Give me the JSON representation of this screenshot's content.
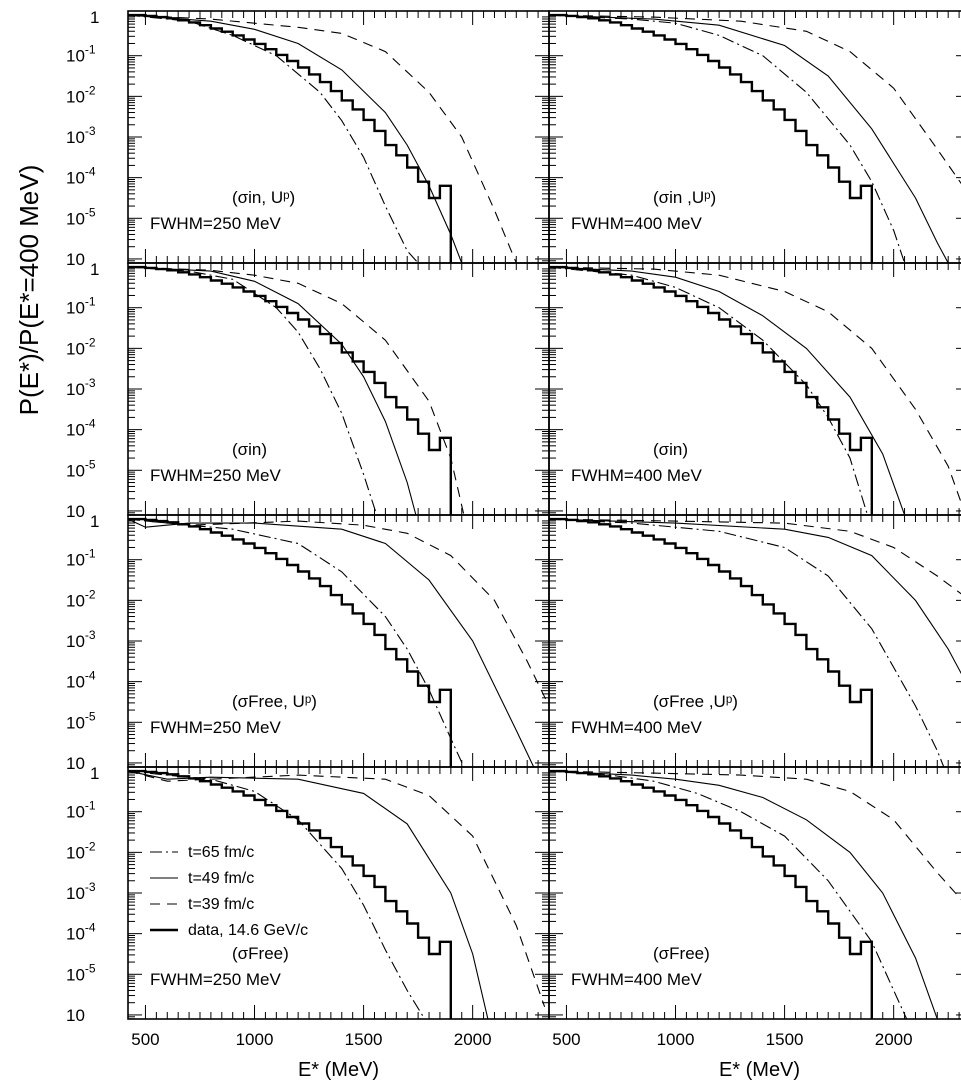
{
  "figure": {
    "ylabel": "P(E*)/P(E*=400 MeV)",
    "xlabel": "E* (MeV)",
    "x_ticks": [
      "500",
      "1000",
      "1500",
      "2000"
    ],
    "y_ticks": [
      "1",
      "10-1",
      "10-2",
      "10-3",
      "10-4",
      "10-5",
      "10"
    ]
  },
  "legend": {
    "items": [
      {
        "label": "t=65 fm/c",
        "style": "dashdot"
      },
      {
        "label": "t=49 fm/c",
        "style": "solid"
      },
      {
        "label": "t=39 fm/c",
        "style": "dashed"
      },
      {
        "label": "data, 14.6 GeV/c",
        "style": "histogram"
      }
    ]
  },
  "chart_data": {
    "type": "line",
    "layout": "4x2 grid of panels, shared axes",
    "xlabel": "E* (MeV)",
    "ylabel": "P(E*)/P(E*=400 MeV)",
    "xlim": [
      420,
      2350
    ],
    "ylim_log10": [
      -6.1,
      0.1
    ],
    "y_scale": "log",
    "x_ticks": [
      500,
      1000,
      1500,
      2000
    ],
    "legend_position": "lower-left of bottom-left panel",
    "data_histogram": {
      "name": "data, 14.6 GeV/c",
      "x": [
        420,
        500,
        550,
        600,
        650,
        700,
        750,
        800,
        850,
        900,
        950,
        1000,
        1050,
        1100,
        1150,
        1200,
        1250,
        1300,
        1350,
        1400,
        1450,
        1500,
        1550,
        1600,
        1650,
        1700,
        1750,
        1800,
        1850,
        1900
      ],
      "log10_y": [
        0,
        -0.02,
        -0.05,
        -0.08,
        -0.13,
        -0.18,
        -0.25,
        -0.33,
        -0.41,
        -0.5,
        -0.6,
        -0.71,
        -0.84,
        -0.98,
        -1.13,
        -1.29,
        -1.46,
        -1.65,
        -1.87,
        -2.1,
        -2.32,
        -2.58,
        -2.85,
        -3.2,
        -3.45,
        -3.75,
        -4.1,
        -4.5,
        -4.2
      ]
    },
    "panels": [
      {
        "label": "(σin, Uᵖ)",
        "fwhm": "FWHM=250 MeV",
        "t65": {
          "x": [
            420,
            700,
            900,
            1100,
            1300,
            1400,
            1500,
            1600,
            1700,
            1750
          ],
          "log10_y": [
            0,
            -0.15,
            -0.5,
            -1.0,
            -1.9,
            -2.6,
            -3.5,
            -4.7,
            -5.8,
            -6.1
          ]
        },
        "t49": {
          "x": [
            420,
            800,
            1000,
            1200,
            1400,
            1600,
            1700,
            1800,
            1900,
            1950
          ],
          "log10_y": [
            0,
            -0.15,
            -0.35,
            -0.7,
            -1.35,
            -2.4,
            -3.2,
            -4.2,
            -5.4,
            -6.1
          ]
        },
        "t39": {
          "x": [
            420,
            800,
            1000,
            1200,
            1400,
            1600,
            1800,
            1950,
            2100,
            2200
          ],
          "log10_y": [
            0,
            -0.1,
            -0.2,
            -0.3,
            -0.45,
            -0.9,
            -1.9,
            -3.0,
            -4.8,
            -6.1
          ]
        }
      },
      {
        "label": "(σin ,Uᵖ)",
        "fwhm": "FWHM=400 MeV",
        "t65": {
          "x": [
            420,
            800,
            1000,
            1200,
            1400,
            1600,
            1800,
            1900,
            2000,
            2050
          ],
          "log10_y": [
            0,
            -0.1,
            -0.2,
            -0.5,
            -1.0,
            -1.9,
            -3.2,
            -4.1,
            -5.3,
            -6.1
          ]
        },
        "t49": {
          "x": [
            420,
            900,
            1200,
            1500,
            1700,
            1900,
            2100,
            2200,
            2250
          ],
          "log10_y": [
            0,
            -0.1,
            -0.25,
            -0.75,
            -1.5,
            -2.8,
            -4.5,
            -5.6,
            -6.1
          ]
        },
        "t39": {
          "x": [
            420,
            900,
            1300,
            1600,
            1800,
            2000,
            2200,
            2330
          ],
          "log10_y": [
            0,
            -0.05,
            -0.15,
            -0.4,
            -0.9,
            -1.8,
            -3.3,
            -4.3
          ]
        }
      },
      {
        "label": "(σin)",
        "fwhm": "FWHM=250 MeV",
        "t65": {
          "x": [
            420,
            700,
            900,
            1100,
            1200,
            1300,
            1400,
            1500,
            1560
          ],
          "log10_y": [
            0,
            -0.1,
            -0.3,
            -1.0,
            -1.6,
            -2.5,
            -3.6,
            -5.1,
            -6.1
          ]
        },
        "t49": {
          "x": [
            420,
            800,
            1000,
            1200,
            1400,
            1500,
            1600,
            1700,
            1740
          ],
          "log10_y": [
            0,
            -0.1,
            -0.35,
            -0.9,
            -1.9,
            -2.7,
            -3.8,
            -5.3,
            -6.1
          ]
        },
        "t39": {
          "x": [
            420,
            800,
            1000,
            1200,
            1400,
            1600,
            1800,
            1900,
            1960
          ],
          "log10_y": [
            0,
            -0.08,
            -0.2,
            -0.4,
            -0.9,
            -1.8,
            -3.3,
            -4.7,
            -6.1
          ]
        }
      },
      {
        "label": "(σin)",
        "fwhm": "FWHM=400 MeV",
        "t65": {
          "x": [
            420,
            800,
            1000,
            1200,
            1400,
            1600,
            1700,
            1800,
            1880
          ],
          "log10_y": [
            0,
            -0.2,
            -0.5,
            -1.0,
            -1.8,
            -2.9,
            -3.7,
            -4.7,
            -6.1
          ]
        },
        "t49": {
          "x": [
            420,
            800,
            1000,
            1200,
            1400,
            1600,
            1800,
            1950,
            2050
          ],
          "log10_y": [
            0,
            -0.1,
            -0.25,
            -0.6,
            -1.2,
            -2.0,
            -3.2,
            -4.6,
            -6.1
          ]
        },
        "t39": {
          "x": [
            420,
            900,
            1200,
            1500,
            1700,
            1900,
            2100,
            2250,
            2330
          ],
          "log10_y": [
            0,
            -0.05,
            -0.2,
            -0.6,
            -1.1,
            -2.0,
            -3.5,
            -4.9,
            -6.1
          ]
        }
      },
      {
        "label": "(σFree, Uᵖ)",
        "fwhm": "FWHM=250 MeV",
        "t65": {
          "x": [
            420,
            600,
            900,
            1200,
            1400,
            1600,
            1700,
            1800,
            1900,
            1960
          ],
          "log10_y": [
            0,
            -0.1,
            -0.25,
            -0.6,
            -1.3,
            -2.4,
            -3.2,
            -4.2,
            -5.4,
            -6.1
          ]
        },
        "t49": {
          "x": [
            420,
            500,
            700,
            1000,
            1400,
            1600,
            1800,
            2000,
            2200,
            2280
          ],
          "log10_y": [
            0,
            -0.2,
            -0.1,
            -0.1,
            -0.25,
            -0.6,
            -1.5,
            -3.0,
            -5.2,
            -6.1
          ]
        },
        "t39": {
          "x": [
            420,
            700,
            1200,
            1500,
            1700,
            1900,
            2100,
            2250,
            2350
          ],
          "log10_y": [
            0,
            -0.15,
            -0.05,
            -0.15,
            -0.35,
            -0.9,
            -2.0,
            -3.5,
            -4.6
          ]
        }
      },
      {
        "label": "(σFree ,Uᵖ)",
        "fwhm": "FWHM=400 MeV",
        "t65": {
          "x": [
            420,
            800,
            1200,
            1500,
            1700,
            1900,
            2100,
            2200,
            2230
          ],
          "log10_y": [
            0,
            -0.1,
            -0.3,
            -0.7,
            -1.4,
            -2.7,
            -4.6,
            -5.7,
            -6.1
          ]
        },
        "t49": {
          "x": [
            420,
            1000,
            1500,
            1700,
            1900,
            2100,
            2250,
            2350
          ],
          "log10_y": [
            0,
            -0.1,
            -0.25,
            -0.45,
            -0.9,
            -2.0,
            -3.2,
            -4.2
          ]
        },
        "t39": {
          "x": [
            420,
            1000,
            1500,
            1800,
            2000,
            2200,
            2350
          ],
          "log10_y": [
            0,
            -0.05,
            -0.1,
            -0.3,
            -0.7,
            -1.4,
            -2.0
          ]
        }
      },
      {
        "label": "(σFree)",
        "fwhm": "FWHM=250 MeV",
        "t65": {
          "x": [
            420,
            600,
            800,
            1000,
            1200,
            1400,
            1500,
            1600,
            1700,
            1780
          ],
          "log10_y": [
            0,
            -0.1,
            -0.2,
            -0.5,
            -1.2,
            -2.4,
            -3.3,
            -4.4,
            -5.4,
            -6.1
          ]
        },
        "t49": {
          "x": [
            420,
            600,
            800,
            1200,
            1500,
            1700,
            1900,
            2000,
            2070
          ],
          "log10_y": [
            0,
            -0.2,
            -0.15,
            -0.2,
            -0.55,
            -1.3,
            -3.0,
            -4.5,
            -6.1
          ]
        },
        "t39": {
          "x": [
            420,
            600,
            1200,
            1600,
            1800,
            2000,
            2200,
            2330
          ],
          "log10_y": [
            0,
            -0.25,
            -0.1,
            -0.2,
            -0.6,
            -1.6,
            -3.8,
            -5.8
          ]
        }
      },
      {
        "label": "(σFree)",
        "fwhm": "FWHM=400 MeV",
        "t65": {
          "x": [
            420,
            700,
            900,
            1100,
            1300,
            1500,
            1700,
            1900,
            2000,
            2060
          ],
          "log10_y": [
            0,
            -0.1,
            -0.25,
            -0.55,
            -1.0,
            -1.6,
            -2.7,
            -4.2,
            -5.4,
            -6.1
          ]
        },
        "t49": {
          "x": [
            420,
            800,
            1000,
            1200,
            1400,
            1600,
            1800,
            1950,
            2100,
            2200
          ],
          "log10_y": [
            0,
            -0.1,
            -0.2,
            -0.35,
            -0.65,
            -1.2,
            -2.0,
            -3.0,
            -4.6,
            -6.1
          ]
        },
        "t39": {
          "x": [
            420,
            900,
            1300,
            1600,
            1800,
            2000,
            2200,
            2350
          ],
          "log10_y": [
            0,
            -0.05,
            -0.1,
            -0.2,
            -0.5,
            -1.2,
            -2.5,
            -3.4
          ]
        }
      }
    ]
  }
}
